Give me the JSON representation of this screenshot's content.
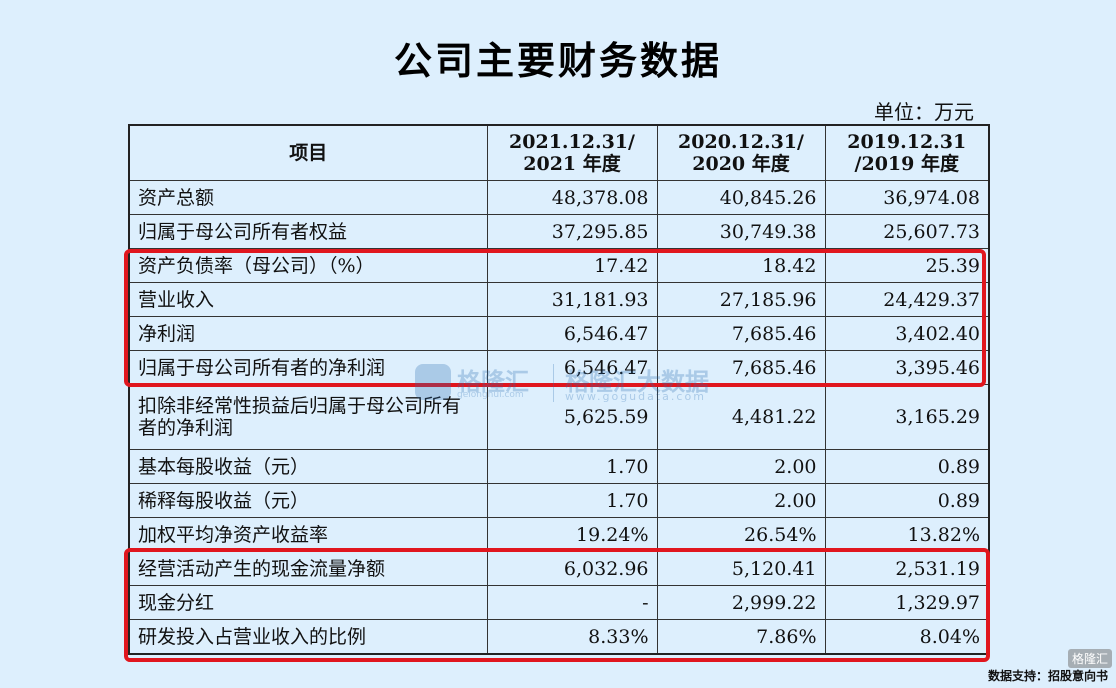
{
  "title": "公司主要财务数据",
  "unit_label": "单位：万元",
  "table": {
    "headers": [
      [
        "项目"
      ],
      [
        "2021.12.31/",
        "2021 年度"
      ],
      [
        "2020.12.31/",
        "2020 年度"
      ],
      [
        "2019.12.31",
        "/2019 年度"
      ]
    ],
    "rows": [
      {
        "label": "资产总额",
        "values": [
          "48,378.08",
          "40,845.26",
          "36,974.08"
        ]
      },
      {
        "label": "归属于母公司所有者权益",
        "values": [
          "37,295.85",
          "30,749.38",
          "25,607.73"
        ]
      },
      {
        "label": "资产负债率（母公司）（%）",
        "values": [
          "17.42",
          "18.42",
          "25.39"
        ]
      },
      {
        "label": "营业收入",
        "values": [
          "31,181.93",
          "27,185.96",
          "24,429.37"
        ]
      },
      {
        "label": "净利润",
        "values": [
          "6,546.47",
          "7,685.46",
          "3,402.40"
        ]
      },
      {
        "label": "归属于母公司所有者的净利润",
        "values": [
          "6,546.47",
          "7,685.46",
          "3,395.46"
        ]
      },
      {
        "label": "扣除非经常性损益后归属于母公司所有者的净利润",
        "values": [
          "5,625.59",
          "4,481.22",
          "3,165.29"
        ]
      },
      {
        "label": "基本每股收益（元）",
        "values": [
          "1.70",
          "2.00",
          "0.89"
        ]
      },
      {
        "label": "稀释每股收益（元）",
        "values": [
          "1.70",
          "2.00",
          "0.89"
        ]
      },
      {
        "label": "加权平均净资产收益率",
        "values": [
          "19.24%",
          "26.54%",
          "13.82%"
        ]
      },
      {
        "label": "经营活动产生的现金流量净额",
        "values": [
          "6,032.96",
          "5,120.41",
          "2,531.19"
        ]
      },
      {
        "label": "现金分红",
        "values": [
          "-",
          "2,999.22",
          "1,329.97"
        ]
      },
      {
        "label": "研发投入占营业收入的比例",
        "values": [
          "8.33%",
          "7.86%",
          "8.04%"
        ]
      }
    ]
  },
  "highlight_color": "#e0161e",
  "watermark": {
    "name1": "格隆汇",
    "site1": "gelonghui.com",
    "name2": "格隆汇大数据",
    "site2": "www.gogudata.com"
  },
  "corner_logo": "格隆汇",
  "source": "数据支持：招股意向书"
}
